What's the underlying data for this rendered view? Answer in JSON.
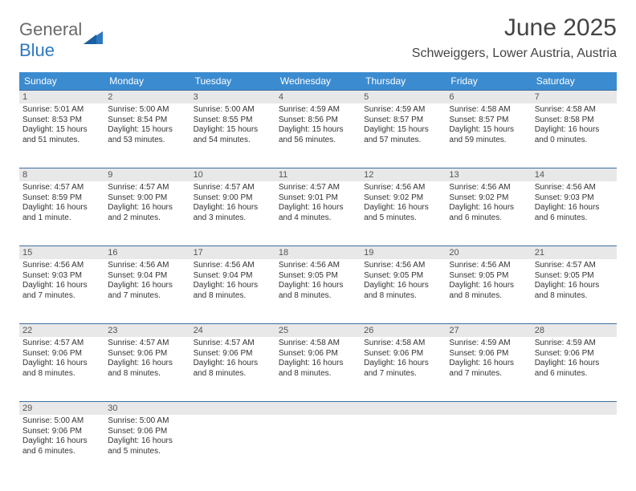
{
  "logo": {
    "word1": "General",
    "word2": "Blue"
  },
  "title": "June 2025",
  "location": "Schweiggers, Lower Austria, Austria",
  "colors": {
    "header_bg": "#3b8bd0",
    "header_text": "#ffffff",
    "rule": "#3b6fa0",
    "daynum_bg": "#e8e8e8",
    "text": "#333333",
    "logo_gray": "#6a6a6a",
    "logo_blue": "#2e78c2"
  },
  "dow": [
    "Sunday",
    "Monday",
    "Tuesday",
    "Wednesday",
    "Thursday",
    "Friday",
    "Saturday"
  ],
  "weeks": [
    [
      {
        "n": "1",
        "sr": "5:01 AM",
        "ss": "8:53 PM",
        "dl": "15 hours and 51 minutes."
      },
      {
        "n": "2",
        "sr": "5:00 AM",
        "ss": "8:54 PM",
        "dl": "15 hours and 53 minutes."
      },
      {
        "n": "3",
        "sr": "5:00 AM",
        "ss": "8:55 PM",
        "dl": "15 hours and 54 minutes."
      },
      {
        "n": "4",
        "sr": "4:59 AM",
        "ss": "8:56 PM",
        "dl": "15 hours and 56 minutes."
      },
      {
        "n": "5",
        "sr": "4:59 AM",
        "ss": "8:57 PM",
        "dl": "15 hours and 57 minutes."
      },
      {
        "n": "6",
        "sr": "4:58 AM",
        "ss": "8:57 PM",
        "dl": "15 hours and 59 minutes."
      },
      {
        "n": "7",
        "sr": "4:58 AM",
        "ss": "8:58 PM",
        "dl": "16 hours and 0 minutes."
      }
    ],
    [
      {
        "n": "8",
        "sr": "4:57 AM",
        "ss": "8:59 PM",
        "dl": "16 hours and 1 minute."
      },
      {
        "n": "9",
        "sr": "4:57 AM",
        "ss": "9:00 PM",
        "dl": "16 hours and 2 minutes."
      },
      {
        "n": "10",
        "sr": "4:57 AM",
        "ss": "9:00 PM",
        "dl": "16 hours and 3 minutes."
      },
      {
        "n": "11",
        "sr": "4:57 AM",
        "ss": "9:01 PM",
        "dl": "16 hours and 4 minutes."
      },
      {
        "n": "12",
        "sr": "4:56 AM",
        "ss": "9:02 PM",
        "dl": "16 hours and 5 minutes."
      },
      {
        "n": "13",
        "sr": "4:56 AM",
        "ss": "9:02 PM",
        "dl": "16 hours and 6 minutes."
      },
      {
        "n": "14",
        "sr": "4:56 AM",
        "ss": "9:03 PM",
        "dl": "16 hours and 6 minutes."
      }
    ],
    [
      {
        "n": "15",
        "sr": "4:56 AM",
        "ss": "9:03 PM",
        "dl": "16 hours and 7 minutes."
      },
      {
        "n": "16",
        "sr": "4:56 AM",
        "ss": "9:04 PM",
        "dl": "16 hours and 7 minutes."
      },
      {
        "n": "17",
        "sr": "4:56 AM",
        "ss": "9:04 PM",
        "dl": "16 hours and 8 minutes."
      },
      {
        "n": "18",
        "sr": "4:56 AM",
        "ss": "9:05 PM",
        "dl": "16 hours and 8 minutes."
      },
      {
        "n": "19",
        "sr": "4:56 AM",
        "ss": "9:05 PM",
        "dl": "16 hours and 8 minutes."
      },
      {
        "n": "20",
        "sr": "4:56 AM",
        "ss": "9:05 PM",
        "dl": "16 hours and 8 minutes."
      },
      {
        "n": "21",
        "sr": "4:57 AM",
        "ss": "9:05 PM",
        "dl": "16 hours and 8 minutes."
      }
    ],
    [
      {
        "n": "22",
        "sr": "4:57 AM",
        "ss": "9:06 PM",
        "dl": "16 hours and 8 minutes."
      },
      {
        "n": "23",
        "sr": "4:57 AM",
        "ss": "9:06 PM",
        "dl": "16 hours and 8 minutes."
      },
      {
        "n": "24",
        "sr": "4:57 AM",
        "ss": "9:06 PM",
        "dl": "16 hours and 8 minutes."
      },
      {
        "n": "25",
        "sr": "4:58 AM",
        "ss": "9:06 PM",
        "dl": "16 hours and 8 minutes."
      },
      {
        "n": "26",
        "sr": "4:58 AM",
        "ss": "9:06 PM",
        "dl": "16 hours and 7 minutes."
      },
      {
        "n": "27",
        "sr": "4:59 AM",
        "ss": "9:06 PM",
        "dl": "16 hours and 7 minutes."
      },
      {
        "n": "28",
        "sr": "4:59 AM",
        "ss": "9:06 PM",
        "dl": "16 hours and 6 minutes."
      }
    ],
    [
      {
        "n": "29",
        "sr": "5:00 AM",
        "ss": "9:06 PM",
        "dl": "16 hours and 6 minutes."
      },
      {
        "n": "30",
        "sr": "5:00 AM",
        "ss": "9:06 PM",
        "dl": "16 hours and 5 minutes."
      },
      null,
      null,
      null,
      null,
      null
    ]
  ],
  "labels": {
    "sunrise": "Sunrise:",
    "sunset": "Sunset:",
    "daylight": "Daylight:"
  }
}
